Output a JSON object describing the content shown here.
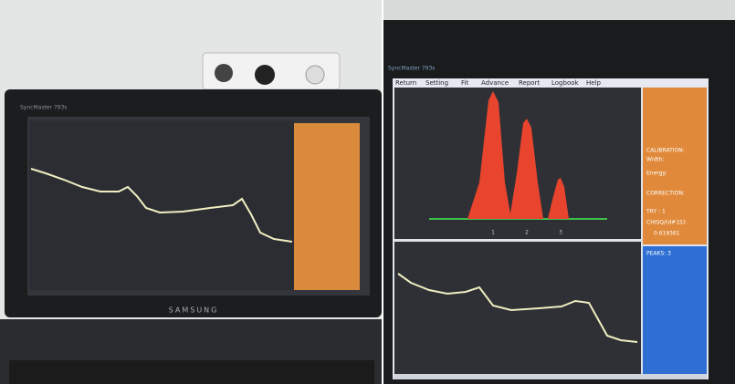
{
  "left_monitor": {
    "model": "SyncMaster 793s",
    "brand": "SAMSUNG"
  },
  "right_monitor": {
    "model": "SyncMaster 793s",
    "menu": [
      "Return",
      "Setting",
      "Fit",
      "Advance",
      "Report",
      "Logbook",
      "Help"
    ],
    "side_panel": [
      "CALIBRATION:",
      "Width:",
      "Energy:",
      "CORRECTION:",
      "TRY : 1",
      "CHISQ/(d#1S):",
      "0.619361"
    ],
    "peak_labels": [
      "1",
      "2",
      "3"
    ],
    "lower_panel": [
      "PEAKS: 3"
    ]
  }
}
